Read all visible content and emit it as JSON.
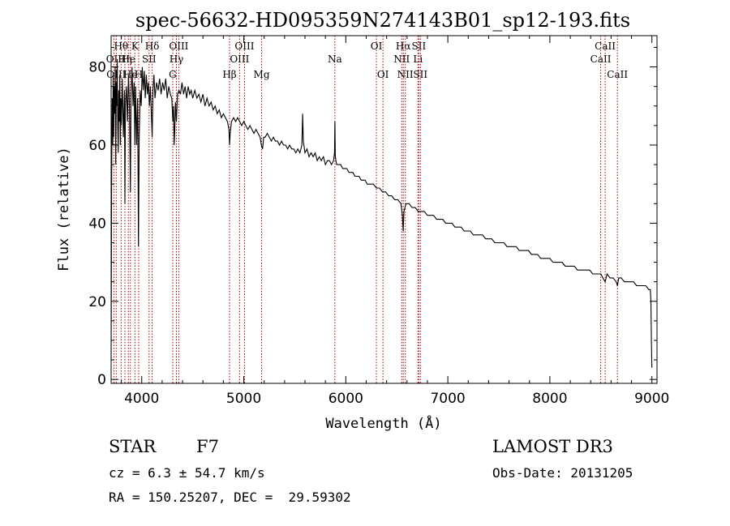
{
  "chart_data": {
    "type": "line",
    "title": "spec-56632-HD095359N274143B01_sp12-193.fits",
    "xlabel": "Wavelength (Å)",
    "ylabel": "Flux (relative)",
    "xlim": [
      3700,
      9050
    ],
    "ylim": [
      -1,
      88
    ],
    "x_ticks": [
      4000,
      5000,
      6000,
      7000,
      8000,
      9000
    ],
    "y_ticks": [
      0,
      20,
      40,
      60,
      80
    ],
    "series": [
      {
        "name": "flux",
        "points": [
          [
            3700,
            5
          ],
          [
            3705,
            50
          ],
          [
            3710,
            72
          ],
          [
            3715,
            60
          ],
          [
            3720,
            78
          ],
          [
            3725,
            62
          ],
          [
            3730,
            75
          ],
          [
            3735,
            68
          ],
          [
            3740,
            80
          ],
          [
            3745,
            55
          ],
          [
            3750,
            76
          ],
          [
            3755,
            70
          ],
          [
            3760,
            82
          ],
          [
            3765,
            64
          ],
          [
            3770,
            58
          ],
          [
            3775,
            74
          ],
          [
            3780,
            66
          ],
          [
            3785,
            78
          ],
          [
            3790,
            60
          ],
          [
            3795,
            72
          ],
          [
            3800,
            65
          ],
          [
            3810,
            77
          ],
          [
            3820,
            62
          ],
          [
            3830,
            74
          ],
          [
            3835,
            45
          ],
          [
            3840,
            70
          ],
          [
            3850,
            75
          ],
          [
            3860,
            66
          ],
          [
            3870,
            78
          ],
          [
            3880,
            70
          ],
          [
            3889,
            48
          ],
          [
            3895,
            72
          ],
          [
            3905,
            80
          ],
          [
            3915,
            70
          ],
          [
            3925,
            76
          ],
          [
            3933,
            60
          ],
          [
            3940,
            75
          ],
          [
            3950,
            60
          ],
          [
            3960,
            72
          ],
          [
            3968,
            34
          ],
          [
            3975,
            62
          ],
          [
            3985,
            74
          ],
          [
            3995,
            70
          ],
          [
            4005,
            80
          ],
          [
            4015,
            74
          ],
          [
            4025,
            79
          ],
          [
            4035,
            72
          ],
          [
            4045,
            78
          ],
          [
            4055,
            73
          ],
          [
            4065,
            76
          ],
          [
            4075,
            70
          ],
          [
            4085,
            75
          ],
          [
            4102,
            62
          ],
          [
            4110,
            74
          ],
          [
            4120,
            78
          ],
          [
            4130,
            72
          ],
          [
            4145,
            76
          ],
          [
            4160,
            74
          ],
          [
            4175,
            77
          ],
          [
            4190,
            73
          ],
          [
            4205,
            76
          ],
          [
            4220,
            74
          ],
          [
            4235,
            77
          ],
          [
            4250,
            72
          ],
          [
            4265,
            75
          ],
          [
            4280,
            73
          ],
          [
            4295,
            72
          ],
          [
            4305,
            66
          ],
          [
            4312,
            70
          ],
          [
            4318,
            60
          ],
          [
            4324,
            64
          ],
          [
            4330,
            71
          ],
          [
            4340,
            66
          ],
          [
            4350,
            73
          ],
          [
            4365,
            74
          ],
          [
            4380,
            73
          ],
          [
            4395,
            76
          ],
          [
            4410,
            73
          ],
          [
            4425,
            75
          ],
          [
            4440,
            72
          ],
          [
            4455,
            75
          ],
          [
            4470,
            73
          ],
          [
            4485,
            74
          ],
          [
            4500,
            72
          ],
          [
            4520,
            74
          ],
          [
            4540,
            72
          ],
          [
            4560,
            73
          ],
          [
            4580,
            71
          ],
          [
            4600,
            73
          ],
          [
            4620,
            70
          ],
          [
            4640,
            72
          ],
          [
            4660,
            70
          ],
          [
            4680,
            71
          ],
          [
            4700,
            69
          ],
          [
            4720,
            70
          ],
          [
            4740,
            68
          ],
          [
            4760,
            69
          ],
          [
            4780,
            67
          ],
          [
            4800,
            68
          ],
          [
            4820,
            67
          ],
          [
            4840,
            66
          ],
          [
            4855,
            64
          ],
          [
            4861,
            60
          ],
          [
            4867,
            63
          ],
          [
            4880,
            66
          ],
          [
            4900,
            67
          ],
          [
            4920,
            66
          ],
          [
            4940,
            67
          ],
          [
            4960,
            66
          ],
          [
            4980,
            65
          ],
          [
            5000,
            66
          ],
          [
            5020,
            65
          ],
          [
            5040,
            64
          ],
          [
            5060,
            65
          ],
          [
            5080,
            64
          ],
          [
            5100,
            63
          ],
          [
            5120,
            64
          ],
          [
            5140,
            63
          ],
          [
            5160,
            62
          ],
          [
            5172,
            60
          ],
          [
            5184,
            59
          ],
          [
            5195,
            62
          ],
          [
            5210,
            62
          ],
          [
            5230,
            63
          ],
          [
            5250,
            62
          ],
          [
            5270,
            61
          ],
          [
            5290,
            62
          ],
          [
            5310,
            61
          ],
          [
            5330,
            61
          ],
          [
            5350,
            60
          ],
          [
            5370,
            61
          ],
          [
            5390,
            60
          ],
          [
            5410,
            60
          ],
          [
            5430,
            59
          ],
          [
            5450,
            60
          ],
          [
            5470,
            59
          ],
          [
            5490,
            59
          ],
          [
            5510,
            58
          ],
          [
            5530,
            59
          ],
          [
            5550,
            58
          ],
          [
            5570,
            60
          ],
          [
            5577,
            68
          ],
          [
            5584,
            61
          ],
          [
            5600,
            58
          ],
          [
            5620,
            59
          ],
          [
            5640,
            57
          ],
          [
            5660,
            58
          ],
          [
            5680,
            57
          ],
          [
            5700,
            58
          ],
          [
            5720,
            56
          ],
          [
            5740,
            57
          ],
          [
            5760,
            56
          ],
          [
            5780,
            57
          ],
          [
            5800,
            55
          ],
          [
            5820,
            56
          ],
          [
            5840,
            56
          ],
          [
            5860,
            55
          ],
          [
            5880,
            56
          ],
          [
            5889,
            58
          ],
          [
            5893,
            66
          ],
          [
            5897,
            57
          ],
          [
            5910,
            55
          ],
          [
            5930,
            55
          ],
          [
            5950,
            55
          ],
          [
            5970,
            54
          ],
          [
            5990,
            54
          ],
          [
            6010,
            54
          ],
          [
            6030,
            53
          ],
          [
            6050,
            53
          ],
          [
            6070,
            53
          ],
          [
            6090,
            52
          ],
          [
            6110,
            52
          ],
          [
            6130,
            52
          ],
          [
            6150,
            51
          ],
          [
            6170,
            51
          ],
          [
            6190,
            51
          ],
          [
            6210,
            50
          ],
          [
            6230,
            50
          ],
          [
            6250,
            50
          ],
          [
            6270,
            50
          ],
          [
            6300,
            49
          ],
          [
            6330,
            49
          ],
          [
            6360,
            48
          ],
          [
            6390,
            48
          ],
          [
            6420,
            47
          ],
          [
            6450,
            47
          ],
          [
            6480,
            46
          ],
          [
            6510,
            46
          ],
          [
            6540,
            45
          ],
          [
            6555,
            42
          ],
          [
            6563,
            38
          ],
          [
            6570,
            43
          ],
          [
            6590,
            45
          ],
          [
            6620,
            45
          ],
          [
            6650,
            44
          ],
          [
            6680,
            44
          ],
          [
            6710,
            43
          ],
          [
            6740,
            43
          ],
          [
            6770,
            43
          ],
          [
            6800,
            42
          ],
          [
            6830,
            42
          ],
          [
            6860,
            42
          ],
          [
            6890,
            41
          ],
          [
            6920,
            41
          ],
          [
            6950,
            41
          ],
          [
            6980,
            40
          ],
          [
            7010,
            40
          ],
          [
            7040,
            40
          ],
          [
            7070,
            39
          ],
          [
            7100,
            39
          ],
          [
            7130,
            39
          ],
          [
            7160,
            38
          ],
          [
            7190,
            38
          ],
          [
            7220,
            38
          ],
          [
            7250,
            37
          ],
          [
            7280,
            37
          ],
          [
            7310,
            37
          ],
          [
            7340,
            37
          ],
          [
            7370,
            36
          ],
          [
            7400,
            36
          ],
          [
            7430,
            36
          ],
          [
            7460,
            35
          ],
          [
            7490,
            35
          ],
          [
            7520,
            35
          ],
          [
            7550,
            35
          ],
          [
            7580,
            34
          ],
          [
            7610,
            34
          ],
          [
            7640,
            34
          ],
          [
            7670,
            34
          ],
          [
            7700,
            33
          ],
          [
            7730,
            33
          ],
          [
            7760,
            33
          ],
          [
            7790,
            33
          ],
          [
            7820,
            32
          ],
          [
            7850,
            32
          ],
          [
            7880,
            32
          ],
          [
            7910,
            31
          ],
          [
            7940,
            31
          ],
          [
            7970,
            31
          ],
          [
            8000,
            31
          ],
          [
            8030,
            30
          ],
          [
            8060,
            30
          ],
          [
            8090,
            30
          ],
          [
            8120,
            30
          ],
          [
            8150,
            29
          ],
          [
            8180,
            29
          ],
          [
            8210,
            29
          ],
          [
            8240,
            29
          ],
          [
            8270,
            28
          ],
          [
            8300,
            28
          ],
          [
            8330,
            28
          ],
          [
            8360,
            28
          ],
          [
            8390,
            28
          ],
          [
            8420,
            27
          ],
          [
            8450,
            27
          ],
          [
            8480,
            27
          ],
          [
            8500,
            27
          ],
          [
            8520,
            26
          ],
          [
            8542,
            25
          ],
          [
            8560,
            27
          ],
          [
            8590,
            26
          ],
          [
            8620,
            26
          ],
          [
            8650,
            25
          ],
          [
            8662,
            24
          ],
          [
            8675,
            26
          ],
          [
            8700,
            26
          ],
          [
            8730,
            25
          ],
          [
            8760,
            25
          ],
          [
            8790,
            25
          ],
          [
            8820,
            25
          ],
          [
            8850,
            24
          ],
          [
            8880,
            24
          ],
          [
            8910,
            24
          ],
          [
            8940,
            24
          ],
          [
            8970,
            23
          ],
          [
            8985,
            23
          ],
          [
            8990,
            20
          ],
          [
            8995,
            10
          ],
          [
            9000,
            3
          ]
        ]
      }
    ],
    "line_markers": [
      {
        "wavelength": 3727,
        "label": "OII",
        "row": 1
      },
      {
        "wavelength": 3750,
        "label": "OIII",
        "row": 2
      },
      {
        "wavelength": 3798,
        "label": "Hθ",
        "row": 0
      },
      {
        "wavelength": 3835,
        "label": "Hη",
        "row": 1
      },
      {
        "wavelength": 3869,
        "label": "He",
        "row": 1
      },
      {
        "wavelength": 3889,
        "label": "He",
        "row": 2
      },
      {
        "wavelength": 3933,
        "label": "K",
        "row": 0
      },
      {
        "wavelength": 3970,
        "label": "H",
        "row": 2
      },
      {
        "wavelength": 4072,
        "label": "SII",
        "row": 1
      },
      {
        "wavelength": 4102,
        "label": "Hδ",
        "row": 0
      },
      {
        "wavelength": 4304,
        "label": "G",
        "row": 2
      },
      {
        "wavelength": 4340,
        "label": "Hγ",
        "row": 1
      },
      {
        "wavelength": 4363,
        "label": "OIII",
        "row": 0
      },
      {
        "wavelength": 4861,
        "label": "Hβ",
        "row": 2
      },
      {
        "wavelength": 4959,
        "label": "OIII",
        "row": 1
      },
      {
        "wavelength": 5007,
        "label": "OIII",
        "row": 0
      },
      {
        "wavelength": 5175,
        "label": "Mg",
        "row": 2
      },
      {
        "wavelength": 5893,
        "label": "Na",
        "row": 1
      },
      {
        "wavelength": 6300,
        "label": "OI",
        "row": 0
      },
      {
        "wavelength": 6364,
        "label": "OI",
        "row": 2
      },
      {
        "wavelength": 6548,
        "label": "NII",
        "row": 1
      },
      {
        "wavelength": 6563,
        "label": "Hα",
        "row": 0
      },
      {
        "wavelength": 6583,
        "label": "NII",
        "row": 2
      },
      {
        "wavelength": 6707,
        "label": "Li",
        "row": 1
      },
      {
        "wavelength": 6716,
        "label": "SII",
        "row": 0
      },
      {
        "wavelength": 6731,
        "label": "SII",
        "row": 2
      },
      {
        "wavelength": 8498,
        "label": "CaII",
        "row": 1
      },
      {
        "wavelength": 8542,
        "label": "CaII",
        "row": 0
      },
      {
        "wavelength": 8662,
        "label": "CaII",
        "row": 2
      }
    ]
  },
  "info": {
    "class": "STAR",
    "subclass": "F7",
    "survey": "LAMOST DR3",
    "cz": "cz = 6.3 ± 54.7 km/s",
    "obs_date": "Obs-Date: 20131205",
    "coords": "RA = 150.25207, DEC =  29.59302"
  },
  "colors": {
    "line_marker": "#b00000",
    "spectrum": "#000000"
  }
}
